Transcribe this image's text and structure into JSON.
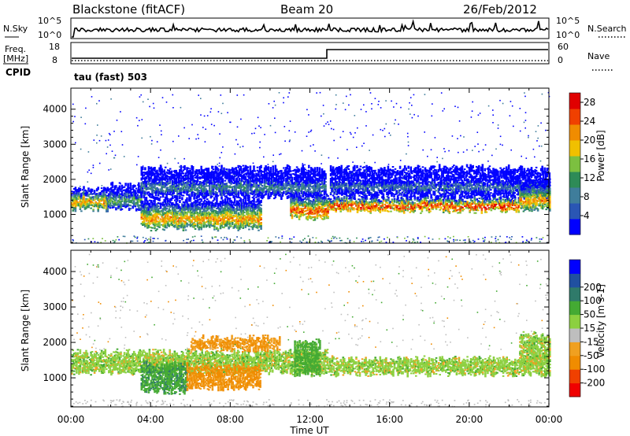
{
  "header": {
    "station": "Blackstone (fitACF)",
    "beam": "Beam 20",
    "date": "26/Feb/2012"
  },
  "noise_panel": {
    "left_label": "N.Sky",
    "right_label": "N.Search",
    "left_ticks": [
      "10^5",
      "10^0"
    ],
    "right_ticks": [
      "10^5",
      "10^0"
    ]
  },
  "freq_panel": {
    "left_label_1": "Freq.",
    "left_label_2": "[MHz]",
    "cpid_label": "CPID",
    "right_label": "Nave",
    "left_ticks": [
      "18",
      "8"
    ],
    "right_ticks": [
      "60",
      "0"
    ],
    "cpid_text": "tau (fast) 503"
  },
  "time_axis": {
    "label": "Time UT",
    "ticks": [
      "00:00",
      "04:00",
      "08:00",
      "12:00",
      "16:00",
      "20:00",
      "00:00"
    ]
  },
  "colors": {
    "power_scale": [
      "#0000ff",
      "#2a56b4",
      "#3f7d9b",
      "#2e8b57",
      "#7cc040",
      "#f0c000",
      "#f08c00",
      "#f04000",
      "#e00000"
    ],
    "velocity_scale": [
      "#f00000",
      "#f04000",
      "#f08c00",
      "#f0a020",
      "#bebebe",
      "#8cd040",
      "#44aa33",
      "#2f7a6a",
      "#2050a0",
      "#0000ff"
    ],
    "noise_line": "#000000"
  },
  "chart_data": [
    {
      "type": "heatmap",
      "panel": "power",
      "ylabel": "Slant Range [km]",
      "xlabel": "Time UT",
      "y_ticks": [
        "1000",
        "2000",
        "3000",
        "4000"
      ],
      "ylim": [
        180,
        4600
      ],
      "xlim_hours": [
        0,
        24
      ],
      "colorbar_label": "Power [dB]",
      "colorbar_ticks": [
        "4",
        "8",
        "12",
        "16",
        "20",
        "24",
        "28"
      ],
      "colorbar_range": [
        0,
        30
      ],
      "bands": [
        {
          "t_start_h": 0.0,
          "t_end_h": 1.8,
          "range_low_km": 1150,
          "range_high_km": 1700,
          "peak_db": 22
        },
        {
          "t_start_h": 1.8,
          "t_end_h": 3.5,
          "range_low_km": 1150,
          "range_high_km": 1800,
          "peak_db": 14
        },
        {
          "t_start_h": 3.5,
          "t_end_h": 9.5,
          "range_low_km": 600,
          "range_high_km": 1400,
          "peak_db": 22
        },
        {
          "t_start_h": 3.5,
          "t_end_h": 12.8,
          "range_low_km": 1500,
          "range_high_km": 2300,
          "peak_db": 10
        },
        {
          "t_start_h": 11.0,
          "t_end_h": 12.9,
          "range_low_km": 900,
          "range_high_km": 1500,
          "peak_db": 26
        },
        {
          "t_start_h": 12.9,
          "t_end_h": 22.5,
          "range_low_km": 1100,
          "range_high_km": 1450,
          "peak_db": 28
        },
        {
          "t_start_h": 13.0,
          "t_end_h": 24.0,
          "range_low_km": 1500,
          "range_high_km": 2300,
          "peak_db": 8
        },
        {
          "t_start_h": 22.5,
          "t_end_h": 24.0,
          "range_low_km": 1150,
          "range_high_km": 1900,
          "peak_db": 22
        }
      ]
    },
    {
      "type": "heatmap",
      "panel": "velocity",
      "ylabel": "Slant Range [km]",
      "xlabel": "Time UT",
      "y_ticks": [
        "1000",
        "2000",
        "3000",
        "4000"
      ],
      "ylim": [
        180,
        4600
      ],
      "xlim_hours": [
        0,
        24
      ],
      "colorbar_label": "Velocity [m s-1]",
      "colorbar_ticks": [
        "-200",
        "-100",
        "-50",
        "-15",
        "15",
        "50",
        "100",
        "200"
      ],
      "colorbar_range": [
        -250,
        250
      ],
      "bands": [
        {
          "t_start_h": 0.0,
          "t_end_h": 12.9,
          "range_low_km": 1150,
          "range_high_km": 1700,
          "velocity": 0
        },
        {
          "t_start_h": 3.5,
          "t_end_h": 5.8,
          "range_low_km": 600,
          "range_high_km": 1350,
          "velocity": 40
        },
        {
          "t_start_h": 5.8,
          "t_end_h": 9.5,
          "range_low_km": 700,
          "range_high_km": 1300,
          "velocity": -60
        },
        {
          "t_start_h": 6.0,
          "t_end_h": 10.5,
          "range_low_km": 1800,
          "range_high_km": 2100,
          "velocity": -50
        },
        {
          "t_start_h": 11.2,
          "t_end_h": 12.5,
          "range_low_km": 1100,
          "range_high_km": 2000,
          "velocity": 30
        },
        {
          "t_start_h": 12.9,
          "t_end_h": 24.0,
          "range_low_km": 1100,
          "range_high_km": 1500,
          "velocity": 0
        },
        {
          "t_start_h": 22.5,
          "t_end_h": 24.0,
          "range_low_km": 1300,
          "range_high_km": 2200,
          "velocity": 0
        }
      ]
    }
  ]
}
